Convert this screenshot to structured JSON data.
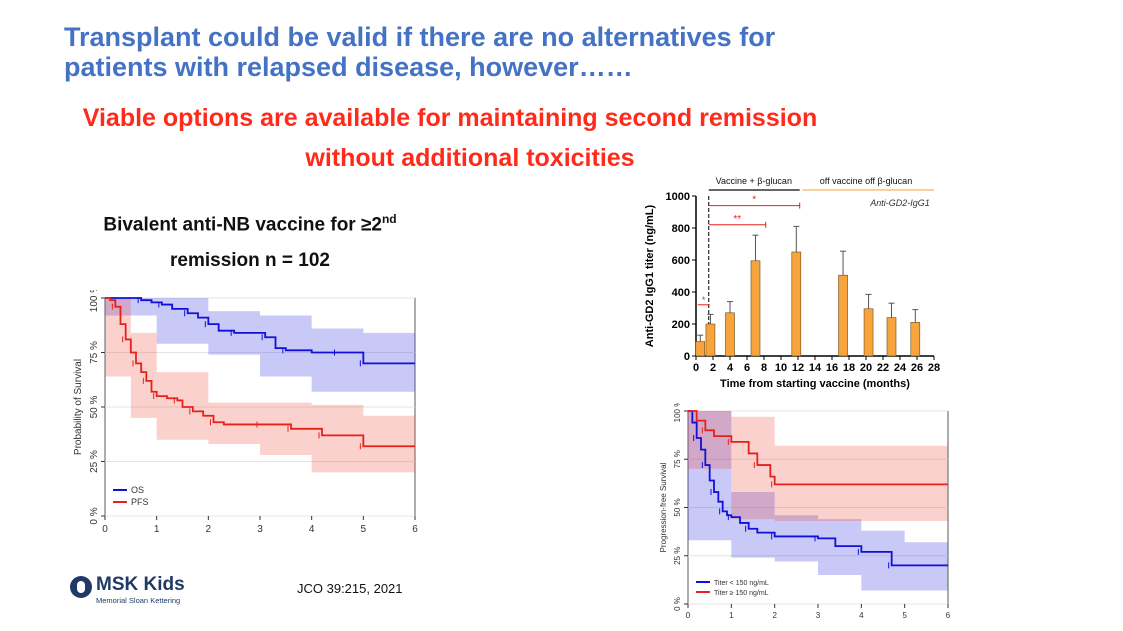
{
  "slide": {
    "title_line1": "Transplant could be valid if there are no alternatives for",
    "title_line2": "patients with relapsed disease, however……",
    "subtitle_line1": "Viable options are available for maintaining second remission",
    "subtitle_line2": "without additional toxicities",
    "heading_line1": "Bivalent anti-NB vaccine for ≥2",
    "heading_sup": "nd",
    "heading_line2": "remission n = 102",
    "citation": "JCO 39:215, 2021",
    "logo_name": "MSK Kids",
    "logo_sub": "Memorial Sloan Kettering"
  },
  "colors": {
    "title": "#4472C4",
    "subtitle": "#FF2A1A",
    "os": "#1010D8",
    "pfs": "#E8201A",
    "bar": "#F7A43C"
  },
  "chart_data": [
    {
      "type": "line",
      "ylabel": "Probability of Survival",
      "xlim": [
        0,
        6
      ],
      "ylim": [
        0,
        100
      ],
      "x_ticks": [
        "0",
        "1",
        "2",
        "3",
        "4",
        "5",
        "6"
      ],
      "y_ticks": [
        "0 %",
        "25 %",
        "50 %",
        "75 %",
        "100 %"
      ],
      "legend": "bottom-left",
      "series": [
        {
          "name": "OS",
          "color": "#1010D8",
          "points": [
            [
              0,
              100
            ],
            [
              0.5,
              100
            ],
            [
              0.7,
              99
            ],
            [
              0.9,
              98
            ],
            [
              1.1,
              97
            ],
            [
              1.3,
              95
            ],
            [
              1.6,
              93
            ],
            [
              1.8,
              91
            ],
            [
              2.0,
              88
            ],
            [
              2.2,
              85
            ],
            [
              2.5,
              84
            ],
            [
              2.9,
              84
            ],
            [
              3.1,
              82
            ],
            [
              3.3,
              77
            ],
            [
              3.5,
              76
            ],
            [
              4.0,
              75
            ],
            [
              4.5,
              75
            ],
            [
              4.95,
              75
            ],
            [
              5.0,
              70
            ],
            [
              6.0,
              70
            ]
          ],
          "ci_upper": [
            [
              0,
              100
            ],
            [
              1,
              100
            ],
            [
              2,
              94
            ],
            [
              3,
              92
            ],
            [
              4,
              86
            ],
            [
              5,
              84
            ],
            [
              6,
              84
            ]
          ],
          "ci_lower": [
            [
              0,
              100
            ],
            [
              1,
              92
            ],
            [
              2,
              79
            ],
            [
              3,
              74
            ],
            [
              4,
              64
            ],
            [
              5,
              57
            ],
            [
              6,
              57
            ]
          ]
        },
        {
          "name": "PFS",
          "color": "#E8201A",
          "points": [
            [
              0,
              100
            ],
            [
              0.1,
              99
            ],
            [
              0.2,
              96
            ],
            [
              0.3,
              88
            ],
            [
              0.4,
              81
            ],
            [
              0.5,
              75
            ],
            [
              0.6,
              70
            ],
            [
              0.7,
              66
            ],
            [
              0.8,
              62
            ],
            [
              0.9,
              57
            ],
            [
              1.0,
              55
            ],
            [
              1.2,
              54
            ],
            [
              1.4,
              53
            ],
            [
              1.5,
              50
            ],
            [
              1.7,
              48
            ],
            [
              1.9,
              46
            ],
            [
              2.1,
              43
            ],
            [
              2.3,
              42
            ],
            [
              3.0,
              42
            ],
            [
              3.5,
              42
            ],
            [
              3.6,
              40
            ],
            [
              4.1,
              40
            ],
            [
              4.2,
              37
            ],
            [
              4.9,
              37
            ],
            [
              5.0,
              32
            ],
            [
              6.0,
              32
            ]
          ],
          "ci_upper": [
            [
              0,
              100
            ],
            [
              0.5,
              84
            ],
            [
              1,
              66
            ],
            [
              2,
              52
            ],
            [
              3,
              52
            ],
            [
              4,
              51
            ],
            [
              5,
              46
            ],
            [
              6,
              46
            ]
          ],
          "ci_lower": [
            [
              0,
              100
            ],
            [
              0.5,
              64
            ],
            [
              1,
              45
            ],
            [
              2,
              35
            ],
            [
              3,
              33
            ],
            [
              4,
              28
            ],
            [
              5,
              20
            ],
            [
              6,
              20
            ]
          ]
        }
      ]
    },
    {
      "type": "bar",
      "ylabel": "Anti-GD2 IgG1 titer (ng/mL)",
      "xlabel": "Time from starting vaccine (months)",
      "annotation": "Anti-GD2-IgG1",
      "phase_labels": [
        "Vaccine + β-glucan",
        "off vaccine off β-glucan"
      ],
      "significance": [
        "*",
        "*",
        "**"
      ],
      "xlim": [
        0,
        28
      ],
      "ylim": [
        0,
        1000
      ],
      "x_ticks": [
        "0",
        "2",
        "4",
        "6",
        "8",
        "10",
        "12",
        "14",
        "16",
        "18",
        "20",
        "22",
        "24",
        "26",
        "28"
      ],
      "y_ticks": [
        "0",
        "200",
        "400",
        "600",
        "800",
        "1000"
      ],
      "bars": [
        {
          "x": 0.5,
          "value": 90,
          "err": 40
        },
        {
          "x": 1.7,
          "value": 200,
          "err": 60
        },
        {
          "x": 4,
          "value": 270,
          "err": 70
        },
        {
          "x": 7,
          "value": 595,
          "err": 160
        },
        {
          "x": 11.8,
          "value": 650,
          "err": 160
        },
        {
          "x": 17.3,
          "value": 505,
          "err": 150
        },
        {
          "x": 20.3,
          "value": 295,
          "err": 90
        },
        {
          "x": 23,
          "value": 240,
          "err": 90
        },
        {
          "x": 25.8,
          "value": 210,
          "err": 80
        }
      ]
    },
    {
      "type": "line",
      "ylabel": "Progression-free Survival",
      "xlim": [
        0,
        6
      ],
      "ylim": [
        0,
        100
      ],
      "x_ticks": [
        "0",
        "1",
        "2",
        "3",
        "4",
        "5",
        "6"
      ],
      "y_ticks": [
        "0 %",
        "25 %",
        "50 %",
        "75 %",
        "100 %"
      ],
      "legend": "bottom-left",
      "series": [
        {
          "name": "Titer < 150 ng/mL",
          "color": "#1010D8",
          "points": [
            [
              0,
              100
            ],
            [
              0.1,
              94
            ],
            [
              0.2,
              86
            ],
            [
              0.3,
              80
            ],
            [
              0.4,
              72
            ],
            [
              0.5,
              64
            ],
            [
              0.6,
              58
            ],
            [
              0.7,
              53
            ],
            [
              0.8,
              48
            ],
            [
              0.9,
              46
            ],
            [
              1.0,
              45
            ],
            [
              1.2,
              42
            ],
            [
              1.4,
              39
            ],
            [
              1.6,
              37
            ],
            [
              2.0,
              35
            ],
            [
              2.7,
              35
            ],
            [
              3.0,
              34
            ],
            [
              3.4,
              30
            ],
            [
              4.0,
              27
            ],
            [
              4.5,
              27
            ],
            [
              4.7,
              20
            ],
            [
              6.0,
              20
            ]
          ],
          "ci_upper": [
            [
              0,
              100
            ],
            [
              1,
              58
            ],
            [
              2,
              46
            ],
            [
              3,
              44
            ],
            [
              4,
              38
            ],
            [
              5,
              32
            ],
            [
              6,
              32
            ]
          ],
          "ci_lower": [
            [
              0,
              100
            ],
            [
              1,
              33
            ],
            [
              2,
              24
            ],
            [
              3,
              22
            ],
            [
              4,
              15
            ],
            [
              5,
              7
            ],
            [
              6,
              7
            ]
          ]
        },
        {
          "name": "Titer ≥ 150 ng/mL",
          "color": "#E8201A",
          "points": [
            [
              0,
              100
            ],
            [
              0.2,
              95
            ],
            [
              0.4,
              90
            ],
            [
              0.6,
              87
            ],
            [
              1.0,
              84
            ],
            [
              1.4,
              78
            ],
            [
              1.6,
              72
            ],
            [
              1.9,
              66
            ],
            [
              2.0,
              62
            ],
            [
              6.0,
              62
            ]
          ],
          "ci_upper": [
            [
              0,
              100
            ],
            [
              1,
              97
            ],
            [
              2,
              82
            ],
            [
              3,
              82
            ],
            [
              4,
              82
            ],
            [
              5,
              82
            ],
            [
              6,
              82
            ]
          ],
          "ci_lower": [
            [
              0,
              100
            ],
            [
              1,
              70
            ],
            [
              2,
              44
            ],
            [
              3,
              43
            ],
            [
              4,
              43
            ],
            [
              5,
              43
            ],
            [
              6,
              43
            ]
          ]
        }
      ]
    }
  ]
}
